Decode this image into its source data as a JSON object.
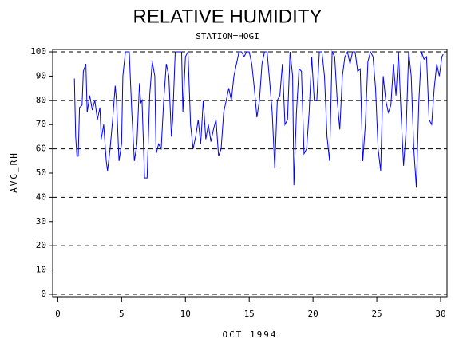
{
  "chart_data": {
    "type": "line",
    "title": "RELATIVE HUMIDITY",
    "subtitle": "STATION=HOGI",
    "x_label": "OCT 1994",
    "y_label": "AVG_RH",
    "xlim": [
      -0.4,
      30.5
    ],
    "ylim": [
      -1,
      101
    ],
    "xticks": [
      0,
      5,
      10,
      15,
      20,
      25,
      30
    ],
    "yticks": [
      0,
      10,
      20,
      30,
      40,
      50,
      60,
      70,
      80,
      90,
      100
    ],
    "grid_lines": [
      0,
      20,
      40,
      60,
      80,
      100
    ],
    "color": "#0000ff",
    "x": [
      1.3,
      1.4,
      1.5,
      1.6,
      1.7,
      1.9,
      2.0,
      2.2,
      2.3,
      2.5,
      2.7,
      2.9,
      3.1,
      3.3,
      3.4,
      3.6,
      3.8,
      3.9,
      4.1,
      4.3,
      4.5,
      4.6,
      4.8,
      5.0,
      5.1,
      5.3,
      5.6,
      5.8,
      6.0,
      6.2,
      6.4,
      6.5,
      6.6,
      6.8,
      7.0,
      7.2,
      7.4,
      7.6,
      7.7,
      7.9,
      8.1,
      8.3,
      8.5,
      8.7,
      8.9,
      9.0,
      9.2,
      9.5,
      9.7,
      9.8,
      10.0,
      10.2,
      10.4,
      10.6,
      10.8,
      11.0,
      11.2,
      11.4,
      11.6,
      11.8,
      12.0,
      12.2,
      12.4,
      12.6,
      12.8,
      13.0,
      13.2,
      13.4,
      13.6,
      13.8,
      14.0,
      14.2,
      14.4,
      14.6,
      14.8,
      15.0,
      15.2,
      15.4,
      15.6,
      15.8,
      16.0,
      16.2,
      16.4,
      16.6,
      16.8,
      17.0,
      17.2,
      17.4,
      17.6,
      17.8,
      18.0,
      18.2,
      18.4,
      18.5,
      18.7,
      18.9,
      19.1,
      19.3,
      19.5,
      19.7,
      19.9,
      20.1,
      20.3,
      20.5,
      20.7,
      20.9,
      21.1,
      21.3,
      21.5,
      21.7,
      21.9,
      22.1,
      22.3,
      22.5,
      22.7,
      22.9,
      23.1,
      23.3,
      23.5,
      23.7,
      23.9,
      24.1,
      24.3,
      24.5,
      24.7,
      24.9,
      25.1,
      25.3,
      25.5,
      25.7,
      25.9,
      26.1,
      26.3,
      26.5,
      26.7,
      26.9,
      27.1,
      27.3,
      27.5,
      27.7,
      27.9,
      28.1,
      28.3,
      28.5,
      28.7,
      28.9,
      29.1,
      29.3,
      29.5,
      29.7,
      29.9,
      30.1,
      30.2
    ],
    "values": [
      89,
      65,
      57,
      57,
      77,
      78,
      92,
      95,
      75,
      82,
      76,
      80,
      72,
      77,
      64,
      70,
      55,
      51,
      60,
      72,
      86,
      80,
      55,
      62,
      90,
      100,
      100,
      75,
      55,
      62,
      87,
      79,
      80,
      48,
      48,
      82,
      96,
      90,
      58,
      62,
      60,
      80,
      95,
      90,
      65,
      72,
      100,
      100,
      100,
      75,
      98,
      100,
      70,
      60,
      65,
      72,
      62,
      80,
      64,
      70,
      63,
      68,
      72,
      57,
      60,
      75,
      80,
      85,
      80,
      90,
      95,
      100,
      100,
      98,
      100,
      100,
      95,
      85,
      73,
      80,
      95,
      100,
      100,
      88,
      75,
      52,
      80,
      82,
      95,
      70,
      72,
      100,
      90,
      45,
      75,
      93,
      92,
      58,
      60,
      75,
      98,
      80,
      80,
      100,
      100,
      90,
      65,
      55,
      100,
      98,
      80,
      68,
      90,
      98,
      100,
      95,
      100,
      100,
      92,
      93,
      55,
      70,
      96,
      100,
      98,
      85,
      60,
      51,
      90,
      80,
      75,
      78,
      95,
      82,
      100,
      75,
      53,
      68,
      100,
      90,
      60,
      44,
      80,
      100,
      97,
      98,
      72,
      70,
      85,
      95,
      90,
      98,
      99
    ]
  }
}
